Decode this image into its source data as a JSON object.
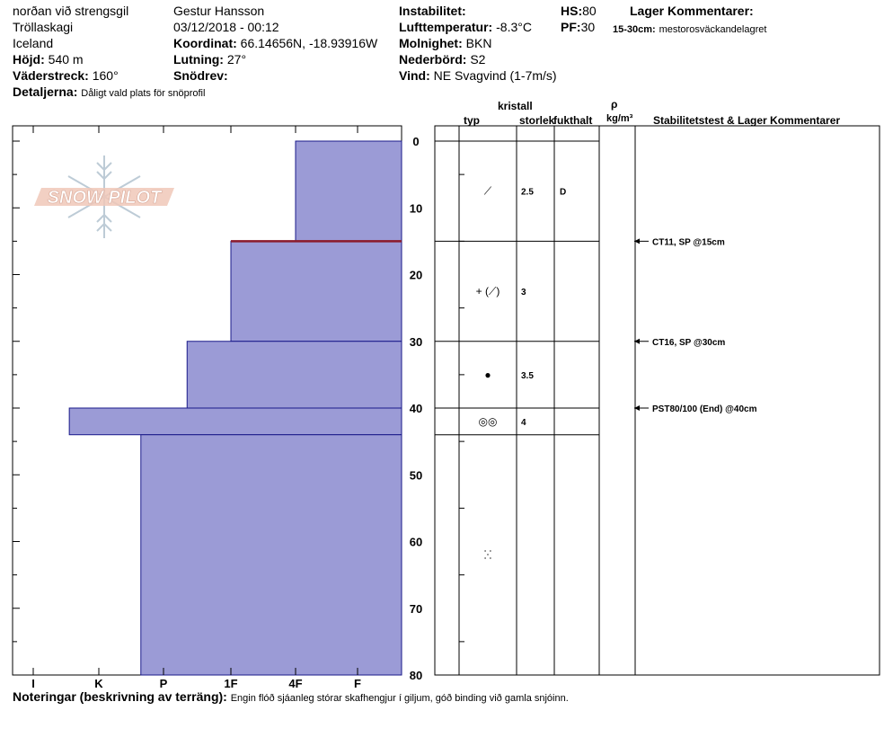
{
  "header": {
    "location": "norðan við strengsgil",
    "region": "Tröllaskagi",
    "country": "Iceland",
    "elevation_label": "Höjd:",
    "elevation_value": "540 m",
    "aspect_label": "Väderstreck:",
    "aspect_value": "160°",
    "details_label": "Detaljerna:",
    "details_value": "Dåligt vald plats för snöprofil",
    "observer": "Gestur Hansson",
    "datetime": "03/12/2018 - 00:12",
    "coord_label": "Koordinat:",
    "coord_value": "66.14656N, -18.93916W",
    "slope_label": "Lutning:",
    "slope_value": "27°",
    "drift_label": "Snödrev:",
    "drift_value": "",
    "instability_label": "Instabilitet:",
    "instability_value": "",
    "airtemp_label": "Lufttemperatur:",
    "airtemp_value": "-8.3°C",
    "sky_label": "Molnighet:",
    "sky_value": "BKN",
    "precip_label": "Nederbörd:",
    "precip_value": "S2",
    "wind_label": "Vind:",
    "wind_value": "NE Svagvind (1-7m/s)",
    "hs_label": "HS:",
    "hs_value": "80",
    "pf_label": "PF:",
    "pf_value": "30",
    "layer_comments_label": "Lager Kommentarer:",
    "layer_comment_range": "15-30cm:",
    "layer_comment_text": "mestorosväckandelagret"
  },
  "columns": {
    "crystal": "kristall",
    "type": "typ",
    "size": "storlek",
    "moisture": "fukthalt",
    "rho": "ρ",
    "density_unit": "kg/m³",
    "stability": "Stabilitetstest & Lager Kommentarer"
  },
  "logo_text": "SNOW PILOT",
  "footer": {
    "label": "Noteringar (beskrivning av terräng):",
    "text": "Engin flóð sjáanleg  stórar skafhengjur í giljum, góð binding við gamla snjóinn."
  },
  "chart_data": {
    "type": "bar",
    "orientation": "horizontal",
    "x_axis": {
      "categories": [
        "I",
        "K",
        "P",
        "1F",
        "4F",
        "F"
      ]
    },
    "y_axis": {
      "ylim": [
        0,
        80
      ],
      "ticks": [
        0,
        10,
        20,
        30,
        40,
        50,
        60,
        70,
        80
      ],
      "direction": "down"
    },
    "colors": {
      "fill": "#9b9bd6",
      "edge": "#1a1a8a",
      "weak_layer": "#8b1a2b"
    },
    "layers": [
      {
        "top": 0,
        "bottom": 15,
        "hardness": "4F",
        "hardness_value": 4.0,
        "grain_form": "decomposing",
        "grain_symbol": "⟋",
        "size": "2.5",
        "moisture": "D"
      },
      {
        "top": 15,
        "bottom": 30,
        "hardness": "1F+",
        "hardness_value": 3.0,
        "grain_form": "new snow + decomposing",
        "grain_symbol": "+ (⟋)",
        "size": "3",
        "moisture": ""
      },
      {
        "top": 30,
        "bottom": 40,
        "hardness": "1F-",
        "hardness_value": 2.35,
        "grain_form": "melt forms",
        "grain_symbol": "●",
        "size": "3.5",
        "moisture": ""
      },
      {
        "top": 40,
        "bottom": 44,
        "hardness": "K+",
        "hardness_value": 0.55,
        "grain_form": "melt clusters",
        "grain_symbol": "◎◎",
        "size": "4",
        "moisture": ""
      },
      {
        "top": 44,
        "bottom": 80,
        "hardness": "P-",
        "hardness_value": 1.65,
        "grain_form": "rounded",
        "grain_symbol": "ⵘ",
        "size": "",
        "moisture": ""
      }
    ],
    "weak_layer_depth": 15,
    "tests": [
      {
        "depth": 15,
        "label": "CT11, SP @15cm"
      },
      {
        "depth": 30,
        "label": "CT16, SP @30cm"
      },
      {
        "depth": 40,
        "label": "PST80/100 (End) @40cm"
      }
    ]
  }
}
